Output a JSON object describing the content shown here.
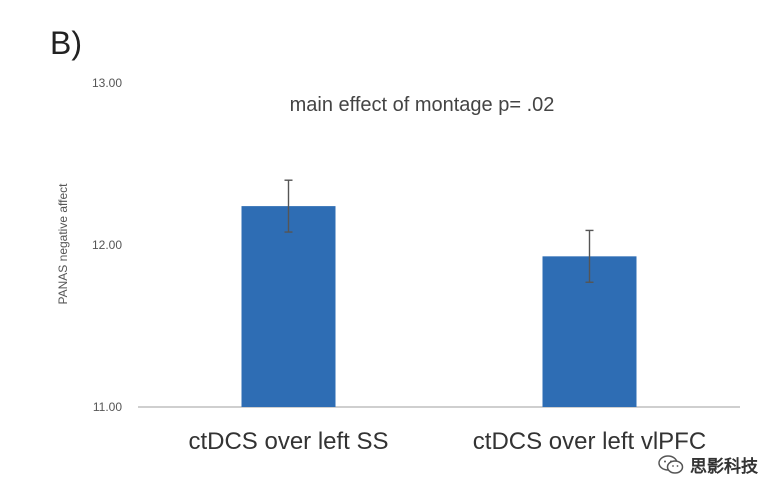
{
  "panel_label": "B)",
  "watermark": {
    "text": "思影科技",
    "icon": "wechat-icon"
  },
  "colors": {
    "bar": "#2e6db4",
    "axis": "#bfbfbf",
    "errorbar": "#555555"
  },
  "chart_data": {
    "type": "bar",
    "title": "main effect of montage p= .02",
    "ylabel": "PANAS negative affect",
    "xlabel": "",
    "ylim": [
      11.0,
      13.0
    ],
    "yticks": [
      11.0,
      12.0,
      13.0
    ],
    "ytick_labels": [
      "11.00",
      "12.00",
      "13.00"
    ],
    "categories": [
      "ctDCS over left SS",
      "ctDCS over left vlPFC"
    ],
    "values": [
      12.24,
      11.93
    ],
    "error": [
      0.16,
      0.16
    ],
    "grid": false,
    "legend": "none"
  }
}
